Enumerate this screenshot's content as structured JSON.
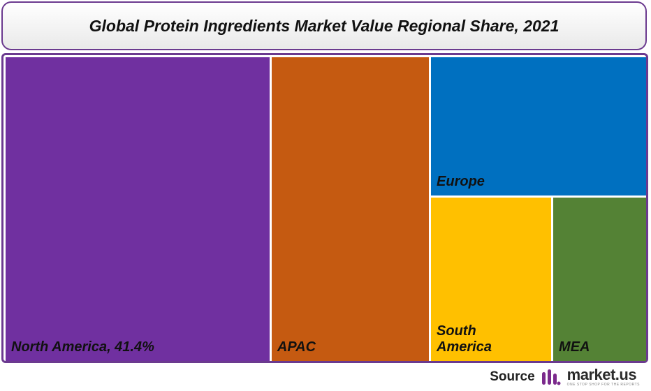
{
  "chart_data": {
    "type": "treemap",
    "title": "Global Protein Ingredients Market Value Regional Share, 2021",
    "regions": [
      {
        "label": "North America, 41.4%",
        "name": "North America",
        "value": 41.4,
        "color": "#7030a0"
      },
      {
        "label": "APAC",
        "name": "APAC",
        "value": 24.8,
        "color": "#c55a11"
      },
      {
        "label": "Europe",
        "name": "Europe",
        "value": 15.5,
        "color": "#0070c0"
      },
      {
        "label": "South\nAmerica",
        "name": "South America",
        "value": 10.3,
        "color": "#ffc000"
      },
      {
        "label": "MEA",
        "name": "MEA",
        "value": 8.0,
        "color": "#548235"
      }
    ]
  },
  "footer": {
    "source_label": "Source",
    "logo_name": "market.us",
    "logo_tagline": "ONE STOP SHOP FOR THE REPORTS",
    "logo_color": "#7b2a8c"
  }
}
